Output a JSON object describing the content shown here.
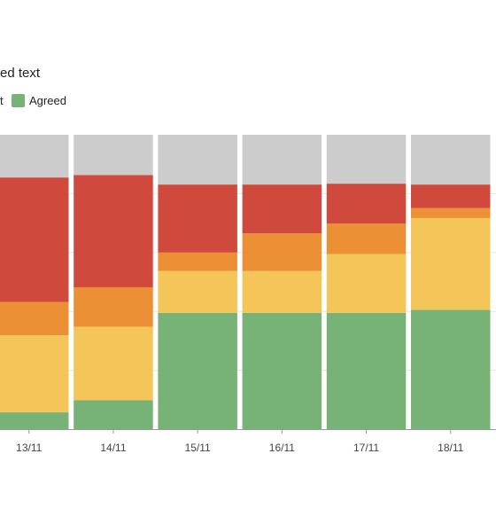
{
  "chart_data": {
    "type": "bar",
    "stacked": true,
    "title": "ed text",
    "categories": [
      "13/11",
      "14/11",
      "15/11",
      "16/11",
      "17/11",
      "18/11"
    ],
    "ylim": [
      0,
      100
    ],
    "grid": true,
    "legend_position": "top-left",
    "legend": [
      {
        "label": "t",
        "color": "#e0873a"
      },
      {
        "label": "Agreed",
        "color": "#77b277"
      }
    ],
    "series": [
      {
        "key": "agreed",
        "color": "#77b277",
        "values": [
          5.7,
          9.8,
          39.5,
          39.5,
          39.5,
          40.5
        ]
      },
      {
        "key": "yellow",
        "color": "#f4c65a",
        "values": [
          26.2,
          25.0,
          14.2,
          14.2,
          20.0,
          31.2
        ]
      },
      {
        "key": "orange",
        "color": "#ec9035",
        "values": [
          11.3,
          13.4,
          6.3,
          12.8,
          10.3,
          3.4
        ]
      },
      {
        "key": "red",
        "color": "#cf4a3c",
        "values": [
          42.3,
          38.1,
          23.1,
          16.6,
          13.6,
          8.0
        ]
      },
      {
        "key": "grey",
        "color": "#cccccc",
        "values": [
          14.5,
          13.7,
          16.9,
          16.9,
          16.6,
          16.9
        ]
      }
    ]
  }
}
